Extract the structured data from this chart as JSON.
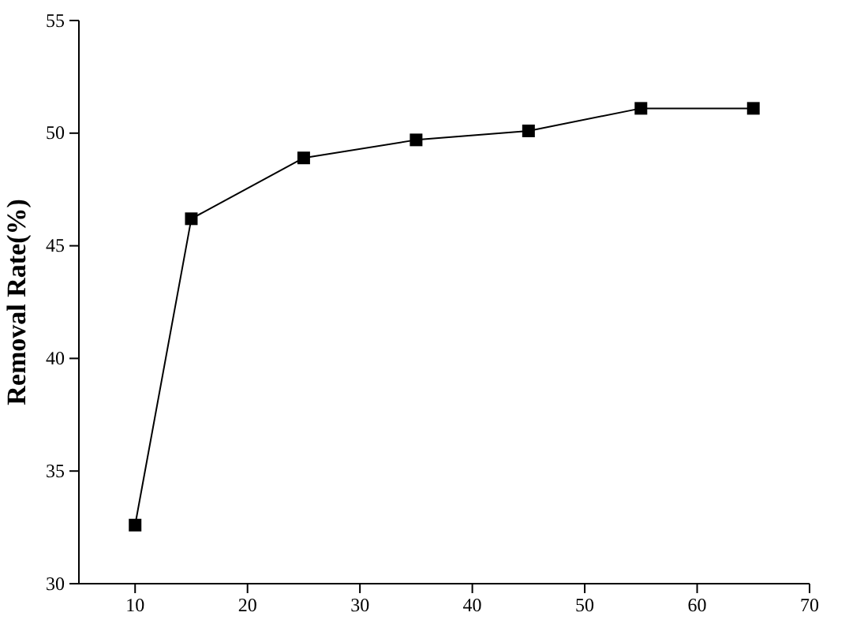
{
  "chart_data": {
    "type": "line",
    "ylabel": "Removal Rate(%)",
    "x": [
      10,
      15,
      25,
      35,
      45,
      55,
      65
    ],
    "series": [
      {
        "color": "#000000",
        "values": [
          32.6,
          46.2,
          48.9,
          49.7,
          50.1,
          51.1,
          51.1
        ]
      }
    ],
    "xlim": [
      5,
      70
    ],
    "xticks": [
      10,
      20,
      30,
      40,
      50,
      60,
      70
    ],
    "ylim": [
      30,
      55
    ],
    "yticks": [
      30,
      35,
      40,
      45,
      50,
      55
    ],
    "marker": "square",
    "line_style": "solid",
    "grid": false
  }
}
